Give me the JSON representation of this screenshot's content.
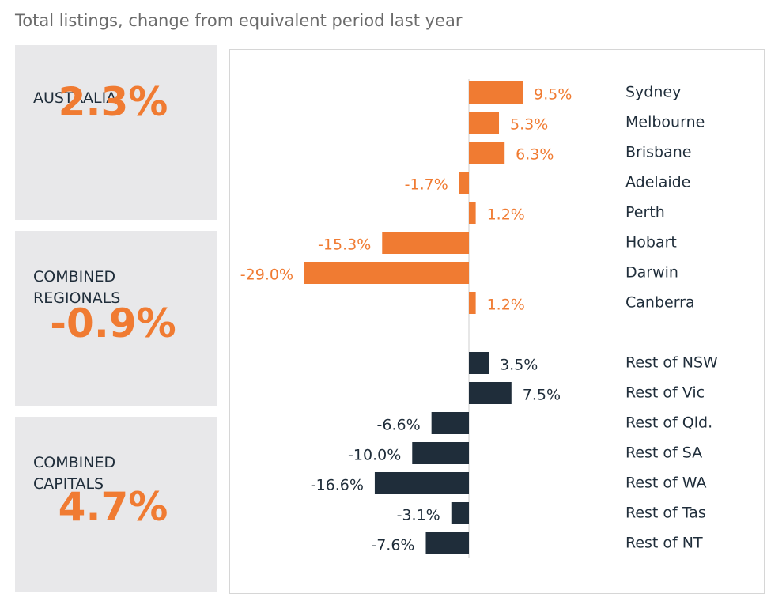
{
  "header": {
    "title": "Total listings, change from equivalent period last year"
  },
  "cards": [
    {
      "label": "AUSTRALIA",
      "value": "2.3%"
    },
    {
      "label": "COMBINED REGIONALS",
      "value": "-0.9%"
    },
    {
      "label": "COMBINED CAPITALS",
      "value": "4.7%"
    }
  ],
  "chart_data": {
    "type": "hbar",
    "categories": [
      "Sydney",
      "Melbourne",
      "Brisbane",
      "Adelaide",
      "Perth",
      "Hobart",
      "Darwin",
      "Canberra",
      null,
      "Rest of NSW",
      "Rest of Vic",
      "Rest of Qld.",
      "Rest of SA",
      "Rest of WA",
      "Rest of Tas",
      "Rest of NT"
    ],
    "values": [
      9.5,
      5.3,
      6.3,
      -1.7,
      1.2,
      -15.3,
      -29.0,
      1.2,
      null,
      3.5,
      7.5,
      -6.6,
      -10.0,
      -16.6,
      -3.1,
      -7.6
    ],
    "value_labels": [
      "9.5%",
      "5.3%",
      "6.3%",
      "-1.7%",
      "1.2%",
      "-15.3%",
      "-29.0%",
      "1.2%",
      null,
      "3.5%",
      "7.5%",
      "-6.6%",
      "-10.0%",
      "-16.6%",
      "-3.1%",
      "-7.6%"
    ],
    "colors": [
      "#f07b32",
      "#f07b32",
      "#f07b32",
      "#f07b32",
      "#f07b32",
      "#f07b32",
      "#f07b32",
      "#f07b32",
      null,
      "#1f2d3a",
      "#1f2d3a",
      "#1f2d3a",
      "#1f2d3a",
      "#1f2d3a",
      "#1f2d3a",
      "#1f2d3a"
    ]
  }
}
